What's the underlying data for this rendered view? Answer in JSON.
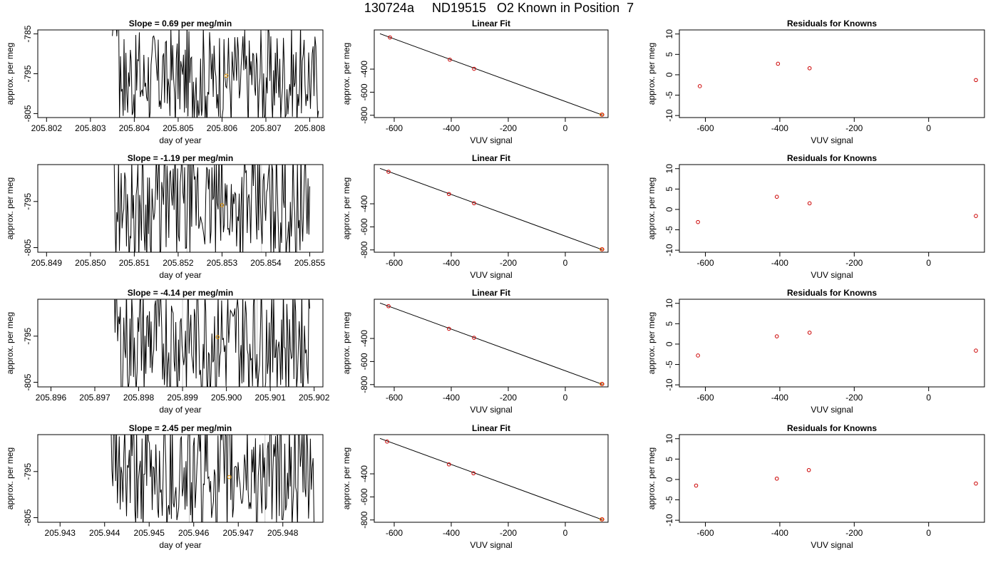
{
  "title": "130724a     ND19515   O2 Known in Position  7",
  "colors": {
    "trace": "#000000",
    "fit_line": "#000000",
    "point": "#cc0000",
    "highlight": "#e69500",
    "marker_line": "#c8c8c8"
  },
  "chart_data": [
    {
      "type": "line",
      "panel": "timeseries",
      "title": "Slope =  0.69  per meg/min",
      "xlabel": "day of year",
      "ylabel": "approx. per meg",
      "xlim": [
        205.8018,
        205.8083
      ],
      "ylim": [
        -806,
        -784
      ],
      "xticks": [
        205.802,
        205.803,
        205.804,
        205.805,
        205.806,
        205.807,
        205.808
      ],
      "xtick_labels": [
        "205.802",
        "205.803",
        "205.804",
        "205.805",
        "205.806",
        "205.807",
        "205.808"
      ],
      "yticks": [
        -805,
        -795,
        -785
      ],
      "ytick_labels": [
        "-805",
        "-795",
        "-785"
      ],
      "x_start": 205.8035,
      "x_end": 205.8082,
      "seed": 17,
      "vlines": [
        205.8052,
        205.807
      ],
      "highlight": {
        "x": 205.8061,
        "y": -795.5
      }
    },
    {
      "type": "scatter",
      "panel": "linear-fit",
      "title": "Linear Fit",
      "xlabel": "VUV signal",
      "ylabel": "approx. per meg",
      "xlim": [
        -670,
        150
      ],
      "ylim": [
        -820,
        -60
      ],
      "xticks": [
        -600,
        -400,
        -200,
        0
      ],
      "xtick_labels": [
        "-600",
        "-400",
        "-200",
        "0"
      ],
      "yticks": [
        -800,
        -600,
        -400
      ],
      "ytick_labels": [
        "-800",
        "-600",
        "-400"
      ],
      "points": [
        {
          "x": -615,
          "y": -125
        },
        {
          "x": -405,
          "y": -318
        },
        {
          "x": -320,
          "y": -397
        }
      ],
      "highlight": {
        "x": 127,
        "y": -795
      },
      "fit": {
        "x0": -650,
        "y0": -93,
        "x1": 130,
        "y1": -798
      }
    },
    {
      "type": "scatter",
      "panel": "residuals",
      "title": "Residuals for Knowns",
      "xlabel": "VUV signal",
      "ylabel": "approx. per meg",
      "xlim": [
        -670,
        150
      ],
      "ylim": [
        -10.5,
        11
      ],
      "xticks": [
        -600,
        -400,
        -200,
        0
      ],
      "xtick_labels": [
        "-600",
        "-400",
        "-200",
        "0"
      ],
      "yticks": [
        -10,
        -5,
        0,
        5,
        10
      ],
      "ytick_labels": [
        "-10",
        "-5",
        "0",
        "5",
        "10"
      ],
      "points": [
        {
          "x": -615,
          "y": -2.8
        },
        {
          "x": -405,
          "y": 2.7
        },
        {
          "x": -320,
          "y": 1.6
        },
        {
          "x": 127,
          "y": -1.3
        }
      ]
    },
    {
      "type": "line",
      "panel": "timeseries",
      "title": "Slope =  -1.19  per meg/min",
      "xlabel": "day of year",
      "ylabel": "approx. per meg",
      "xlim": [
        205.8488,
        205.8553
      ],
      "ylim": [
        -806,
        -787
      ],
      "xticks": [
        205.849,
        205.85,
        205.851,
        205.852,
        205.853,
        205.854,
        205.855
      ],
      "xtick_labels": [
        "205.849",
        "205.850",
        "205.851",
        "205.852",
        "205.853",
        "205.854",
        "205.855"
      ],
      "yticks": [
        -805,
        -795
      ],
      "ytick_labels": [
        "-805",
        "-795"
      ],
      "x_start": 205.8504,
      "x_end": 205.855,
      "seed": 29,
      "vlines": [
        205.8522,
        205.8539
      ],
      "highlight": {
        "x": 205.853,
        "y": -795.8
      }
    },
    {
      "type": "scatter",
      "panel": "linear-fit",
      "title": "Linear Fit",
      "xlabel": "VUV signal",
      "ylabel": "approx. per meg",
      "xlim": [
        -670,
        150
      ],
      "ylim": [
        -820,
        -60
      ],
      "xticks": [
        -600,
        -400,
        -200,
        0
      ],
      "xtick_labels": [
        "-600",
        "-400",
        "-200",
        "0"
      ],
      "yticks": [
        -800,
        -600,
        -400
      ],
      "ytick_labels": [
        "-800",
        "-600",
        "-400"
      ],
      "points": [
        {
          "x": -620,
          "y": -122
        },
        {
          "x": -408,
          "y": -315
        },
        {
          "x": -320,
          "y": -395
        }
      ],
      "highlight": {
        "x": 127,
        "y": -795
      },
      "fit": {
        "x0": -650,
        "y0": -93,
        "x1": 130,
        "y1": -798
      }
    },
    {
      "type": "scatter",
      "panel": "residuals",
      "title": "Residuals for Knowns",
      "xlabel": "VUV signal",
      "ylabel": "approx. per meg",
      "xlim": [
        -670,
        150
      ],
      "ylim": [
        -10.5,
        11
      ],
      "xticks": [
        -600,
        -400,
        -200,
        0
      ],
      "xtick_labels": [
        "-600",
        "-400",
        "-200",
        "0"
      ],
      "yticks": [
        -10,
        -5,
        0,
        5,
        10
      ],
      "ytick_labels": [
        "-10",
        "-5",
        "0",
        "5",
        "10"
      ],
      "points": [
        {
          "x": -620,
          "y": -3.1
        },
        {
          "x": -408,
          "y": 3.1
        },
        {
          "x": -320,
          "y": 1.5
        },
        {
          "x": 127,
          "y": -1.6
        }
      ]
    },
    {
      "type": "line",
      "panel": "timeseries",
      "title": "Slope =  -4.14  per meg/min",
      "xlabel": "day of year",
      "ylabel": "approx. per meg",
      "xlim": [
        205.8957,
        205.9022
      ],
      "ylim": [
        -806,
        -787
      ],
      "xticks": [
        205.896,
        205.897,
        205.898,
        205.899,
        205.9,
        205.901,
        205.902
      ],
      "xtick_labels": [
        "205.896",
        "205.897",
        "205.898",
        "205.899",
        "205.900",
        "205.901",
        "205.902"
      ],
      "yticks": [
        -805,
        -795
      ],
      "ytick_labels": [
        "-805",
        "-795"
      ],
      "x_start": 205.8973,
      "x_end": 205.9019,
      "seed": 43,
      "vlines": [
        205.899,
        205.9007
      ],
      "highlight": {
        "x": 205.8998,
        "y": -795.2
      }
    },
    {
      "type": "scatter",
      "panel": "linear-fit",
      "title": "Linear Fit",
      "xlabel": "VUV signal",
      "ylabel": "approx. per meg",
      "xlim": [
        -670,
        150
      ],
      "ylim": [
        -820,
        -60
      ],
      "xticks": [
        -600,
        -400,
        -200,
        0
      ],
      "xtick_labels": [
        "-600",
        "-400",
        "-200",
        "0"
      ],
      "yticks": [
        -800,
        -600,
        -400
      ],
      "ytick_labels": [
        "-800",
        "-600",
        "-400"
      ],
      "points": [
        {
          "x": -620,
          "y": -120
        },
        {
          "x": -408,
          "y": -316
        },
        {
          "x": -320,
          "y": -394
        }
      ],
      "highlight": {
        "x": 127,
        "y": -795
      },
      "fit": {
        "x0": -650,
        "y0": -93,
        "x1": 130,
        "y1": -798
      }
    },
    {
      "type": "scatter",
      "panel": "residuals",
      "title": "Residuals for Knowns",
      "xlabel": "VUV signal",
      "ylabel": "approx. per meg",
      "xlim": [
        -670,
        150
      ],
      "ylim": [
        -10.5,
        11
      ],
      "xticks": [
        -600,
        -400,
        -200,
        0
      ],
      "xtick_labels": [
        "-600",
        "-400",
        "-200",
        "0"
      ],
      "yticks": [
        -10,
        -5,
        0,
        5,
        10
      ],
      "ytick_labels": [
        "-10",
        "-5",
        "0",
        "5",
        "10"
      ],
      "points": [
        {
          "x": -620,
          "y": -2.8
        },
        {
          "x": -408,
          "y": 1.9
        },
        {
          "x": -320,
          "y": 2.8
        },
        {
          "x": 127,
          "y": -1.6
        }
      ]
    },
    {
      "type": "line",
      "panel": "timeseries",
      "title": "Slope =  2.45  per meg/min",
      "xlabel": "day of year",
      "ylabel": "approx. per meg",
      "xlim": [
        205.9425,
        205.9489
      ],
      "ylim": [
        -806,
        -787
      ],
      "xticks": [
        205.943,
        205.944,
        205.945,
        205.946,
        205.947,
        205.948
      ],
      "xtick_labels": [
        "205.943",
        "205.944",
        "205.945",
        "205.946",
        "205.947",
        "205.948"
      ],
      "yticks": [
        -805,
        -795
      ],
      "ytick_labels": [
        "-805",
        "-795"
      ],
      "x_start": 205.944,
      "x_end": 205.9487,
      "seed": 61,
      "vlines": [
        205.9459,
        205.9476
      ],
      "highlight": {
        "x": 205.9468,
        "y": -796.2
      }
    },
    {
      "type": "scatter",
      "panel": "linear-fit",
      "title": "Linear Fit",
      "xlabel": "VUV signal",
      "ylabel": "approx. per meg",
      "xlim": [
        -670,
        150
      ],
      "ylim": [
        -820,
        -60
      ],
      "xticks": [
        -600,
        -400,
        -200,
        0
      ],
      "xtick_labels": [
        "-600",
        "-400",
        "-200",
        "0"
      ],
      "yticks": [
        -800,
        -600,
        -400
      ],
      "ytick_labels": [
        "-800",
        "-600",
        "-400"
      ],
      "points": [
        {
          "x": -625,
          "y": -120
        },
        {
          "x": -408,
          "y": -318
        },
        {
          "x": -322,
          "y": -395
        }
      ],
      "highlight": {
        "x": 127,
        "y": -795
      },
      "fit": {
        "x0": -650,
        "y0": -93,
        "x1": 130,
        "y1": -798
      }
    },
    {
      "type": "scatter",
      "panel": "residuals",
      "title": "Residuals for Knowns",
      "xlabel": "VUV signal",
      "ylabel": "approx. per meg",
      "xlim": [
        -670,
        150
      ],
      "ylim": [
        -10.5,
        11
      ],
      "xticks": [
        -600,
        -400,
        -200,
        0
      ],
      "xtick_labels": [
        "-600",
        "-400",
        "-200",
        "0"
      ],
      "yticks": [
        -10,
        -5,
        0,
        5,
        10
      ],
      "ytick_labels": [
        "-10",
        "-5",
        "0",
        "5",
        "10"
      ],
      "points": [
        {
          "x": -625,
          "y": -1.5
        },
        {
          "x": -408,
          "y": 0.2
        },
        {
          "x": -322,
          "y": 2.3
        },
        {
          "x": 127,
          "y": -1.0
        }
      ]
    }
  ]
}
